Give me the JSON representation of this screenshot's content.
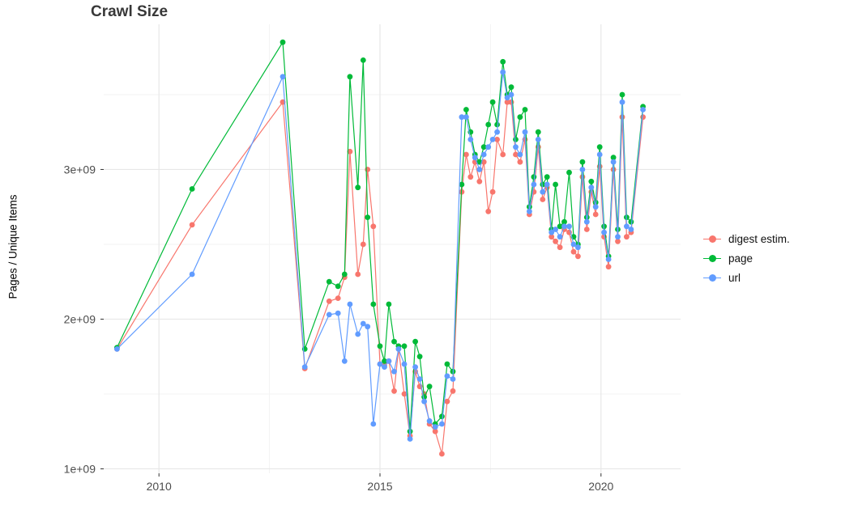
{
  "chart_data": {
    "type": "line",
    "markers": true,
    "title": "Crawl Size",
    "xlabel": "",
    "ylabel": "Pages / Unique Items",
    "values_unit": "items, stored in billions (axis shows 1e+09 scale)",
    "xlim": [
      2008.75,
      2021.8
    ],
    "ylim": [
      0.97,
      3.97
    ],
    "x_tick_values": [
      2010,
      2015,
      2020
    ],
    "x_tick_labels": [
      "2010",
      "2015",
      "2020"
    ],
    "y_tick_values": [
      1,
      2,
      3
    ],
    "y_tick_labels": [
      "1e+09",
      "2e+09",
      "3e+09"
    ],
    "x_minor_gridlines": [
      2012.5,
      2017.5
    ],
    "y_minor_gridlines": [
      1.5,
      2.5,
      3.5
    ],
    "grid": true,
    "legend_position": "right",
    "colors": {
      "major_grid": "#e7e7e7",
      "minor_grid": "#f3f3f3",
      "tick_text": "#4d4d4d",
      "tick_mark": "#333333"
    },
    "series": [
      {
        "name": "digest estim.",
        "color": "#F8766D",
        "points": [
          [
            2009.05,
            1.8
          ],
          [
            2010.75,
            2.63
          ],
          [
            2012.8,
            3.45
          ],
          [
            2013.3,
            1.67
          ],
          [
            2013.85,
            2.12
          ],
          [
            2014.05,
            2.14
          ],
          [
            2014.2,
            2.28
          ],
          [
            2014.32,
            3.12
          ],
          [
            2014.5,
            2.3
          ],
          [
            2014.62,
            2.5
          ],
          [
            2014.72,
            3.0
          ],
          [
            2014.85,
            2.62
          ],
          [
            2015.0,
            1.7
          ],
          [
            2015.1,
            1.69
          ],
          [
            2015.2,
            1.72
          ],
          [
            2015.32,
            1.52
          ],
          [
            2015.42,
            1.8
          ],
          [
            2015.55,
            1.5
          ],
          [
            2015.68,
            1.22
          ],
          [
            2015.8,
            1.65
          ],
          [
            2015.9,
            1.55
          ],
          [
            2016.0,
            1.5
          ],
          [
            2016.12,
            1.3
          ],
          [
            2016.25,
            1.25
          ],
          [
            2016.4,
            1.1
          ],
          [
            2016.52,
            1.45
          ],
          [
            2016.65,
            1.52
          ],
          [
            2016.85,
            2.85
          ],
          [
            2016.95,
            3.1
          ],
          [
            2017.05,
            2.95
          ],
          [
            2017.15,
            3.05
          ],
          [
            2017.25,
            2.92
          ],
          [
            2017.35,
            3.05
          ],
          [
            2017.45,
            2.72
          ],
          [
            2017.55,
            2.85
          ],
          [
            2017.65,
            3.2
          ],
          [
            2017.78,
            3.1
          ],
          [
            2017.88,
            3.45
          ],
          [
            2017.97,
            3.45
          ],
          [
            2018.07,
            3.1
          ],
          [
            2018.17,
            3.05
          ],
          [
            2018.28,
            3.2
          ],
          [
            2018.38,
            2.7
          ],
          [
            2018.48,
            2.85
          ],
          [
            2018.58,
            3.15
          ],
          [
            2018.68,
            2.8
          ],
          [
            2018.78,
            2.88
          ],
          [
            2018.88,
            2.55
          ],
          [
            2018.97,
            2.52
          ],
          [
            2019.07,
            2.48
          ],
          [
            2019.17,
            2.6
          ],
          [
            2019.28,
            2.58
          ],
          [
            2019.38,
            2.45
          ],
          [
            2019.48,
            2.42
          ],
          [
            2019.58,
            2.95
          ],
          [
            2019.68,
            2.6
          ],
          [
            2019.78,
            2.85
          ],
          [
            2019.88,
            2.7
          ],
          [
            2019.97,
            3.02
          ],
          [
            2020.07,
            2.55
          ],
          [
            2020.17,
            2.35
          ],
          [
            2020.28,
            3.0
          ],
          [
            2020.38,
            2.52
          ],
          [
            2020.48,
            3.35
          ],
          [
            2020.58,
            2.55
          ],
          [
            2020.68,
            2.58
          ],
          [
            2020.95,
            3.35
          ]
        ]
      },
      {
        "name": "page",
        "color": "#00BA38",
        "points": [
          [
            2009.05,
            1.81
          ],
          [
            2010.75,
            2.87
          ],
          [
            2012.8,
            3.85
          ],
          [
            2013.3,
            1.8
          ],
          [
            2013.85,
            2.25
          ],
          [
            2014.05,
            2.22
          ],
          [
            2014.2,
            2.3
          ],
          [
            2014.32,
            3.62
          ],
          [
            2014.5,
            2.88
          ],
          [
            2014.62,
            3.73
          ],
          [
            2014.72,
            2.68
          ],
          [
            2014.85,
            2.1
          ],
          [
            2015.0,
            1.82
          ],
          [
            2015.1,
            1.72
          ],
          [
            2015.2,
            2.1
          ],
          [
            2015.32,
            1.85
          ],
          [
            2015.42,
            1.82
          ],
          [
            2015.55,
            1.82
          ],
          [
            2015.68,
            1.25
          ],
          [
            2015.8,
            1.85
          ],
          [
            2015.9,
            1.75
          ],
          [
            2016.0,
            1.48
          ],
          [
            2016.12,
            1.55
          ],
          [
            2016.25,
            1.3
          ],
          [
            2016.4,
            1.35
          ],
          [
            2016.52,
            1.7
          ],
          [
            2016.65,
            1.65
          ],
          [
            2016.85,
            2.9
          ],
          [
            2016.95,
            3.4
          ],
          [
            2017.05,
            3.25
          ],
          [
            2017.15,
            3.1
          ],
          [
            2017.25,
            3.05
          ],
          [
            2017.35,
            3.15
          ],
          [
            2017.45,
            3.3
          ],
          [
            2017.55,
            3.45
          ],
          [
            2017.65,
            3.3
          ],
          [
            2017.78,
            3.72
          ],
          [
            2017.88,
            3.5
          ],
          [
            2017.97,
            3.55
          ],
          [
            2018.07,
            3.2
          ],
          [
            2018.17,
            3.35
          ],
          [
            2018.28,
            3.4
          ],
          [
            2018.38,
            2.75
          ],
          [
            2018.48,
            2.95
          ],
          [
            2018.58,
            3.25
          ],
          [
            2018.68,
            2.9
          ],
          [
            2018.78,
            2.95
          ],
          [
            2018.88,
            2.6
          ],
          [
            2018.97,
            2.9
          ],
          [
            2019.07,
            2.62
          ],
          [
            2019.17,
            2.65
          ],
          [
            2019.28,
            2.98
          ],
          [
            2019.38,
            2.55
          ],
          [
            2019.48,
            2.5
          ],
          [
            2019.58,
            3.05
          ],
          [
            2019.68,
            2.68
          ],
          [
            2019.78,
            2.92
          ],
          [
            2019.88,
            2.78
          ],
          [
            2019.97,
            3.15
          ],
          [
            2020.07,
            2.62
          ],
          [
            2020.17,
            2.42
          ],
          [
            2020.28,
            3.08
          ],
          [
            2020.38,
            2.6
          ],
          [
            2020.48,
            3.5
          ],
          [
            2020.58,
            2.68
          ],
          [
            2020.68,
            2.65
          ],
          [
            2020.95,
            3.42
          ]
        ]
      },
      {
        "name": "url",
        "color": "#619CFF",
        "points": [
          [
            2009.05,
            1.8
          ],
          [
            2010.75,
            2.3
          ],
          [
            2012.8,
            3.62
          ],
          [
            2013.3,
            1.68
          ],
          [
            2013.85,
            2.03
          ],
          [
            2014.05,
            2.04
          ],
          [
            2014.2,
            1.72
          ],
          [
            2014.32,
            2.1
          ],
          [
            2014.5,
            1.9
          ],
          [
            2014.62,
            1.97
          ],
          [
            2014.72,
            1.95
          ],
          [
            2014.85,
            1.3
          ],
          [
            2015.0,
            1.7
          ],
          [
            2015.1,
            1.68
          ],
          [
            2015.2,
            1.72
          ],
          [
            2015.32,
            1.65
          ],
          [
            2015.42,
            1.8
          ],
          [
            2015.55,
            1.7
          ],
          [
            2015.68,
            1.2
          ],
          [
            2015.8,
            1.68
          ],
          [
            2015.9,
            1.6
          ],
          [
            2016.0,
            1.45
          ],
          [
            2016.12,
            1.32
          ],
          [
            2016.25,
            1.28
          ],
          [
            2016.4,
            1.3
          ],
          [
            2016.52,
            1.62
          ],
          [
            2016.65,
            1.6
          ],
          [
            2016.85,
            3.35
          ],
          [
            2016.95,
            3.35
          ],
          [
            2017.05,
            3.2
          ],
          [
            2017.15,
            3.08
          ],
          [
            2017.25,
            3.0
          ],
          [
            2017.35,
            3.1
          ],
          [
            2017.45,
            3.15
          ],
          [
            2017.55,
            3.2
          ],
          [
            2017.65,
            3.25
          ],
          [
            2017.78,
            3.65
          ],
          [
            2017.88,
            3.48
          ],
          [
            2017.97,
            3.5
          ],
          [
            2018.07,
            3.15
          ],
          [
            2018.17,
            3.1
          ],
          [
            2018.28,
            3.25
          ],
          [
            2018.38,
            2.72
          ],
          [
            2018.48,
            2.9
          ],
          [
            2018.58,
            3.2
          ],
          [
            2018.68,
            2.85
          ],
          [
            2018.78,
            2.9
          ],
          [
            2018.88,
            2.58
          ],
          [
            2018.97,
            2.6
          ],
          [
            2019.07,
            2.55
          ],
          [
            2019.17,
            2.62
          ],
          [
            2019.28,
            2.62
          ],
          [
            2019.38,
            2.5
          ],
          [
            2019.48,
            2.48
          ],
          [
            2019.58,
            3.0
          ],
          [
            2019.68,
            2.65
          ],
          [
            2019.78,
            2.88
          ],
          [
            2019.88,
            2.75
          ],
          [
            2019.97,
            3.1
          ],
          [
            2020.07,
            2.58
          ],
          [
            2020.17,
            2.4
          ],
          [
            2020.28,
            3.05
          ],
          [
            2020.38,
            2.55
          ],
          [
            2020.48,
            3.45
          ],
          [
            2020.58,
            2.62
          ],
          [
            2020.68,
            2.6
          ],
          [
            2020.95,
            3.4
          ]
        ]
      }
    ]
  }
}
